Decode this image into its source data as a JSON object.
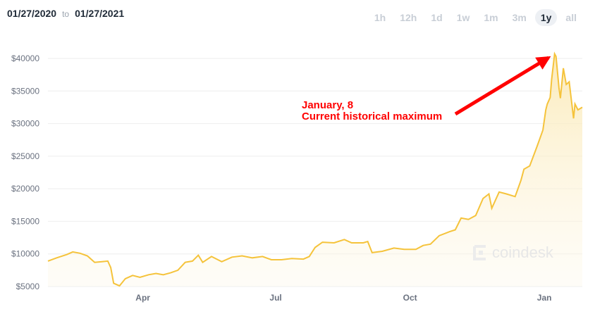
{
  "header": {
    "from_date": "01/27/2020",
    "to_word": "to",
    "to_date": "01/27/2021"
  },
  "range_tabs": [
    {
      "label": "1h",
      "active": false
    },
    {
      "label": "12h",
      "active": false
    },
    {
      "label": "1d",
      "active": false
    },
    {
      "label": "1w",
      "active": false
    },
    {
      "label": "1m",
      "active": false
    },
    {
      "label": "3m",
      "active": false
    },
    {
      "label": "1y",
      "active": true
    },
    {
      "label": "all",
      "active": false
    }
  ],
  "annotation": {
    "line1": "January, 8",
    "line2": "Current historical maximum"
  },
  "watermark": {
    "text": "coindesk",
    "icon": "coindesk-logo-icon"
  },
  "colors": {
    "line": "#f5c33b",
    "area": "#fdf4dc",
    "arrow": "#ff0000",
    "grid": "#eeeeee",
    "axis_text": "#6b7280"
  },
  "chart_data": {
    "type": "area",
    "title": "",
    "xlabel": "",
    "ylabel": "",
    "ylim": [
      5000,
      40000
    ],
    "yticks": [
      5000,
      10000,
      15000,
      20000,
      25000,
      30000,
      35000,
      40000
    ],
    "ytick_labels": [
      "$5000",
      "$10000",
      "$15000",
      "$20000",
      "$25000",
      "$30000",
      "$35000",
      "$40000"
    ],
    "xticks": [
      "2020-04-01",
      "2020-07-01",
      "2020-10-01",
      "2021-01-01"
    ],
    "xtick_labels": [
      "Apr",
      "Jul",
      "Oct",
      "Jan"
    ],
    "xlim": [
      "2020-01-27",
      "2021-01-27"
    ],
    "grid": true,
    "series": [
      {
        "points": [
          [
            "2020-01-27",
            8900
          ],
          [
            "2020-02-02",
            9400
          ],
          [
            "2020-02-09",
            9900
          ],
          [
            "2020-02-13",
            10300
          ],
          [
            "2020-02-18",
            10100
          ],
          [
            "2020-02-23",
            9700
          ],
          [
            "2020-02-28",
            8700
          ],
          [
            "2020-03-04",
            8800
          ],
          [
            "2020-03-08",
            8900
          ],
          [
            "2020-03-10",
            7900
          ],
          [
            "2020-03-12",
            5500
          ],
          [
            "2020-03-16",
            5100
          ],
          [
            "2020-03-20",
            6200
          ],
          [
            "2020-03-25",
            6700
          ],
          [
            "2020-03-30",
            6400
          ],
          [
            "2020-04-05",
            6800
          ],
          [
            "2020-04-10",
            7000
          ],
          [
            "2020-04-15",
            6800
          ],
          [
            "2020-04-20",
            7100
          ],
          [
            "2020-04-25",
            7500
          ],
          [
            "2020-04-30",
            8700
          ],
          [
            "2020-05-05",
            8900
          ],
          [
            "2020-05-09",
            9800
          ],
          [
            "2020-05-12",
            8700
          ],
          [
            "2020-05-18",
            9600
          ],
          [
            "2020-05-25",
            8800
          ],
          [
            "2020-06-01",
            9500
          ],
          [
            "2020-06-08",
            9700
          ],
          [
            "2020-06-15",
            9400
          ],
          [
            "2020-06-22",
            9600
          ],
          [
            "2020-06-28",
            9100
          ],
          [
            "2020-07-05",
            9100
          ],
          [
            "2020-07-12",
            9300
          ],
          [
            "2020-07-20",
            9200
          ],
          [
            "2020-07-24",
            9600
          ],
          [
            "2020-07-28",
            11000
          ],
          [
            "2020-08-02",
            11800
          ],
          [
            "2020-08-10",
            11700
          ],
          [
            "2020-08-17",
            12200
          ],
          [
            "2020-08-22",
            11700
          ],
          [
            "2020-08-30",
            11700
          ],
          [
            "2020-09-02",
            11900
          ],
          [
            "2020-09-05",
            10200
          ],
          [
            "2020-09-12",
            10400
          ],
          [
            "2020-09-20",
            10900
          ],
          [
            "2020-09-27",
            10700
          ],
          [
            "2020-10-05",
            10700
          ],
          [
            "2020-10-10",
            11300
          ],
          [
            "2020-10-15",
            11500
          ],
          [
            "2020-10-21",
            12800
          ],
          [
            "2020-10-28",
            13400
          ],
          [
            "2020-11-01",
            13700
          ],
          [
            "2020-11-05",
            15500
          ],
          [
            "2020-11-10",
            15300
          ],
          [
            "2020-11-15",
            15900
          ],
          [
            "2020-11-20",
            18500
          ],
          [
            "2020-11-24",
            19200
          ],
          [
            "2020-11-26",
            17000
          ],
          [
            "2020-12-01",
            19500
          ],
          [
            "2020-12-06",
            19200
          ],
          [
            "2020-12-12",
            18800
          ],
          [
            "2020-12-16",
            21300
          ],
          [
            "2020-12-18",
            23000
          ],
          [
            "2020-12-22",
            23500
          ],
          [
            "2020-12-27",
            26500
          ],
          [
            "2020-12-31",
            29000
          ],
          [
            "2021-01-02",
            32100
          ],
          [
            "2021-01-03",
            33000
          ],
          [
            "2021-01-05",
            34000
          ],
          [
            "2021-01-06",
            36800
          ],
          [
            "2021-01-08",
            40700
          ],
          [
            "2021-01-09",
            40300
          ],
          [
            "2021-01-11",
            35500
          ],
          [
            "2021-01-12",
            33900
          ],
          [
            "2021-01-14",
            38500
          ],
          [
            "2021-01-16",
            36000
          ],
          [
            "2021-01-18",
            36400
          ],
          [
            "2021-01-21",
            30800
          ],
          [
            "2021-01-22",
            33000
          ],
          [
            "2021-01-24",
            32100
          ],
          [
            "2021-01-27",
            32500
          ]
        ]
      }
    ],
    "annotations": [
      {
        "text": "January, 8",
        "x": "2021-01-08",
        "y": 40700
      },
      {
        "text": "Current historical maximum",
        "x": "2021-01-08",
        "y": 40700
      }
    ]
  }
}
